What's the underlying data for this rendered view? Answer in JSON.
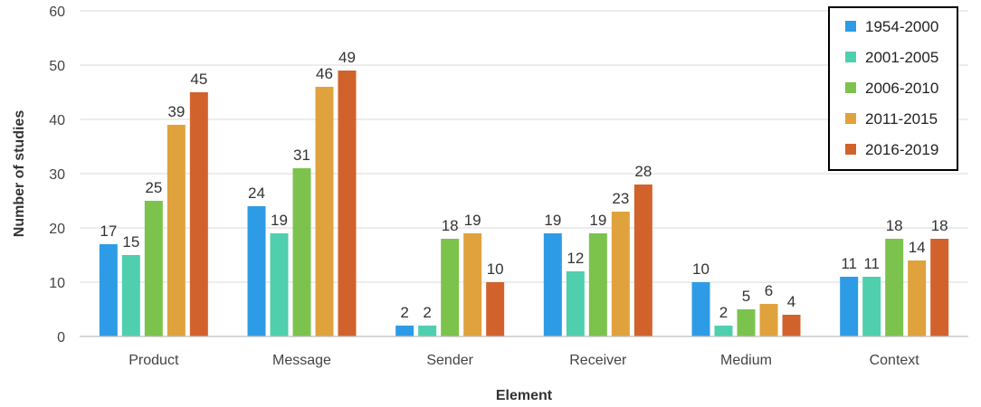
{
  "chart_data": {
    "type": "bar",
    "xlabel": "Element",
    "ylabel": "Number of studies",
    "ylim": [
      0,
      60
    ],
    "yticks": [
      0,
      10,
      20,
      30,
      40,
      50,
      60
    ],
    "grid": true,
    "legend_position": "top-right",
    "categories": [
      "Product",
      "Message",
      "Sender",
      "Receiver",
      "Medium",
      "Context"
    ],
    "series": [
      {
        "name": "1954-2000",
        "color": "#2e9be6",
        "values": [
          17,
          24,
          2,
          19,
          10,
          11
        ]
      },
      {
        "name": "2001-2005",
        "color": "#4fcfae",
        "values": [
          15,
          19,
          2,
          12,
          2,
          11
        ]
      },
      {
        "name": "2006-2010",
        "color": "#7cc34e",
        "values": [
          25,
          31,
          18,
          19,
          5,
          18
        ]
      },
      {
        "name": "2011-2015",
        "color": "#e0a23c",
        "values": [
          39,
          46,
          19,
          23,
          6,
          14
        ]
      },
      {
        "name": "2016-2019",
        "color": "#d2622c",
        "values": [
          45,
          49,
          10,
          28,
          4,
          18
        ]
      }
    ]
  }
}
